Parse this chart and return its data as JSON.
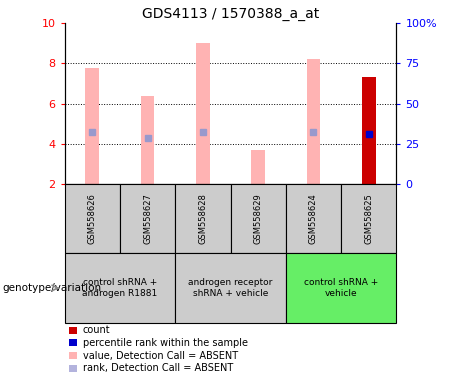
{
  "title": "GDS4113 / 1570388_a_at",
  "samples": [
    "GSM558626",
    "GSM558627",
    "GSM558628",
    "GSM558629",
    "GSM558624",
    "GSM558625"
  ],
  "ylim_left": [
    2,
    10
  ],
  "ylim_right": [
    0,
    100
  ],
  "yticks_left": [
    2,
    4,
    6,
    8,
    10
  ],
  "yticks_right": [
    0,
    25,
    50,
    75,
    100
  ],
  "ytick_labels_right": [
    "0",
    "25",
    "50",
    "75",
    "100%"
  ],
  "pink_bars": [
    7.75,
    6.4,
    9.0,
    3.7,
    8.2,
    7.3
  ],
  "blue_marks": [
    4.6,
    4.3,
    4.6,
    null,
    4.6,
    4.5
  ],
  "last_sample_red": 5,
  "legend_items": [
    {
      "color": "#cc0000",
      "label": "count"
    },
    {
      "color": "#0000cc",
      "label": "percentile rank within the sample"
    },
    {
      "color": "#ffb3b3",
      "label": "value, Detection Call = ABSENT"
    },
    {
      "color": "#b3b3dd",
      "label": "rank, Detection Call = ABSENT"
    }
  ],
  "pink_color": "#ffb3b3",
  "blue_dot_color": "#9999cc",
  "red_bar_color": "#cc0000",
  "blue_rank_color": "#0000cc",
  "bg_table_gray": "#cccccc",
  "bg_table_green": "#66ee66",
  "group_labels": [
    "control shRNA +\nandrogen R1881",
    "androgen receptor\nshRNA + vehicle",
    "control shRNA +\nvehicle"
  ],
  "group_ranges": [
    [
      0,
      2
    ],
    [
      2,
      4
    ],
    [
      4,
      6
    ]
  ],
  "group_colors": [
    "#cccccc",
    "#cccccc",
    "#66ee66"
  ],
  "genotype_label": "genotype/variation",
  "bar_width": 0.25
}
